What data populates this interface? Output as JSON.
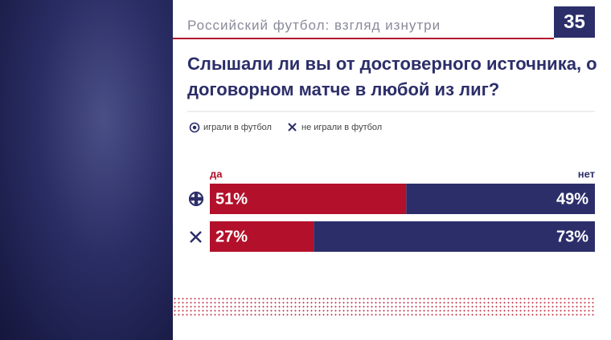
{
  "header": "Российский футбол: взгляд изнутри",
  "page_number": "35",
  "chart_data": {
    "type": "bar",
    "orientation": "horizontal",
    "stacked": true,
    "title": "Слышали ли вы от достоверного источника, о договорном матче в любой из лиг?",
    "categories": [
      "играли в футбол",
      "не играли в футбол"
    ],
    "series": [
      {
        "name": "да",
        "color": "#b3102b",
        "values": [
          51,
          27
        ],
        "value_labels": [
          "51%",
          "27%"
        ]
      },
      {
        "name": "нет",
        "color": "#2c2e6a",
        "values": [
          49,
          73
        ],
        "value_labels": [
          "49%",
          "73%"
        ]
      }
    ],
    "xlim": [
      0,
      100
    ]
  }
}
